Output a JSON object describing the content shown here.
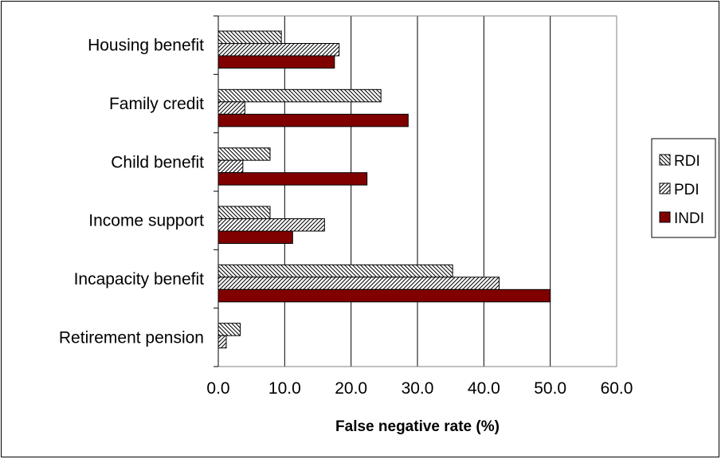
{
  "chart_data": {
    "type": "bar",
    "orientation": "horizontal",
    "categories": [
      "Housing benefit",
      "Family credit",
      "Child benefit",
      "Income support",
      "Incapacity benefit",
      "Retirement pension"
    ],
    "series": [
      {
        "name": "RDI",
        "values": [
          9.5,
          24.5,
          7.8,
          7.8,
          35.3,
          3.3
        ],
        "fill": "hatch-back"
      },
      {
        "name": "PDI",
        "values": [
          18.2,
          4.0,
          3.7,
          16.0,
          42.3,
          1.2
        ],
        "fill": "hatch-forward"
      },
      {
        "name": "INDI",
        "values": [
          17.5,
          28.6,
          22.4,
          11.2,
          50.0,
          0.0
        ],
        "fill": "solid"
      }
    ],
    "xlabel": "False negative rate (%)",
    "ylabel": "",
    "xlim": [
      0,
      60
    ],
    "xticks": [
      "0.0",
      "10.0",
      "20.0",
      "30.0",
      "40.0",
      "50.0",
      "60.0"
    ],
    "grid": "vertical",
    "legend": "right",
    "colors": {
      "indi": "#800000",
      "plot_border": "#808080",
      "grid": "#000000"
    }
  }
}
